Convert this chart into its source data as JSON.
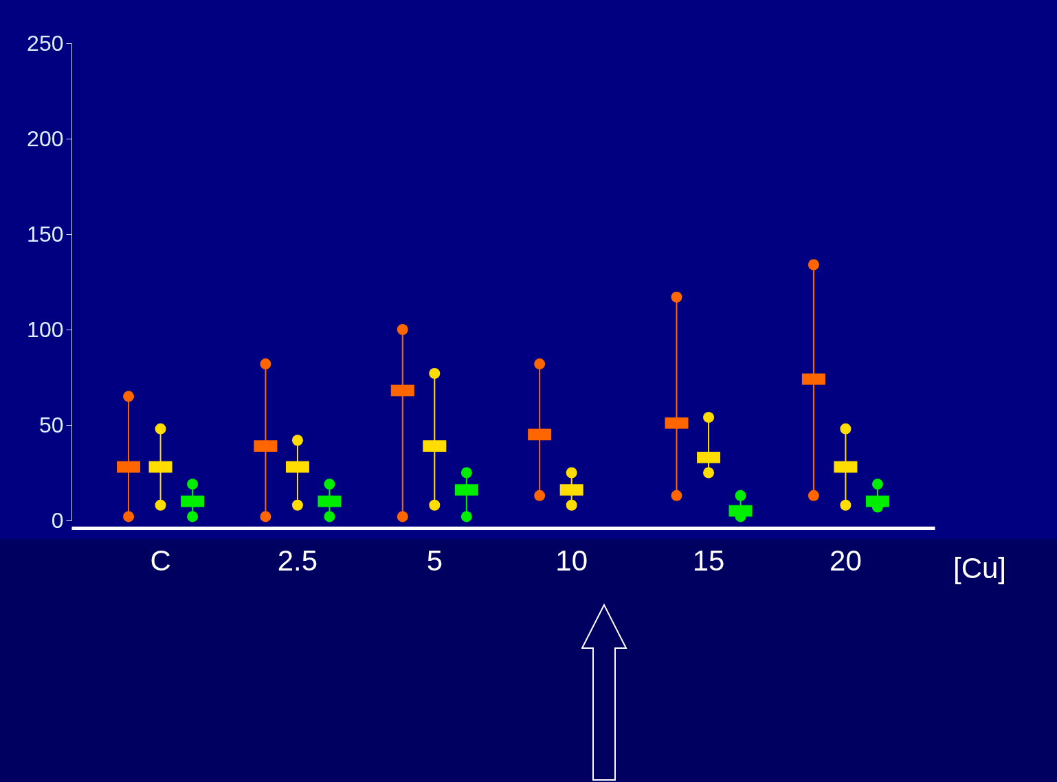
{
  "chart_data": {
    "type": "box",
    "xlabel": "[Cu]",
    "categories": [
      "C",
      "2.5",
      "5",
      "10",
      "15",
      "20"
    ],
    "series": [
      {
        "color": "#ff6600",
        "boxes": [
          {
            "low": 2,
            "q1": 25,
            "median": 28,
            "q3": 31,
            "high": 65
          },
          {
            "low": 2,
            "q1": 36,
            "median": 39,
            "q3": 42,
            "high": 82
          },
          {
            "low": 2,
            "q1": 65,
            "median": 68,
            "q3": 71,
            "high": 100
          },
          {
            "low": 13,
            "q1": 42,
            "median": 45,
            "q3": 48,
            "high": 82
          },
          {
            "low": 13,
            "q1": 48,
            "median": 51,
            "q3": 54,
            "high": 117
          },
          {
            "low": 13,
            "q1": 71,
            "median": 74,
            "q3": 77,
            "high": 134
          }
        ]
      },
      {
        "color": "#ffdd00",
        "boxes": [
          {
            "low": 8,
            "q1": 25,
            "median": 28,
            "q3": 31,
            "high": 48
          },
          {
            "low": 8,
            "q1": 25,
            "median": 28,
            "q3": 31,
            "high": 42
          },
          {
            "low": 8,
            "q1": 36,
            "median": 39,
            "q3": 42,
            "high": 77
          },
          {
            "low": 8,
            "q1": 13,
            "median": 16,
            "q3": 19,
            "high": 25
          },
          {
            "low": 25,
            "q1": 30,
            "median": 33,
            "q3": 36,
            "high": 54
          },
          {
            "low": 8,
            "q1": 25,
            "median": 28,
            "q3": 31,
            "high": 48
          }
        ]
      },
      {
        "color": "#00ee00",
        "boxes": [
          {
            "low": 2,
            "q1": 7,
            "median": 10,
            "q3": 13,
            "high": 19
          },
          {
            "low": 2,
            "q1": 7,
            "median": 10,
            "q3": 13,
            "high": 19
          },
          {
            "low": 2,
            "q1": 13,
            "median": 16,
            "q3": 19,
            "high": 25
          },
          null,
          {
            "low": 2,
            "q1": 2,
            "median": 5,
            "q3": 8,
            "high": 13
          },
          {
            "low": 7,
            "q1": 7,
            "median": 10,
            "q3": 13,
            "high": 19
          }
        ]
      }
    ],
    "ylim": [
      0,
      250
    ],
    "yticks": [
      0,
      50,
      100,
      150,
      200,
      250
    ],
    "grid": false,
    "legend": false
  }
}
